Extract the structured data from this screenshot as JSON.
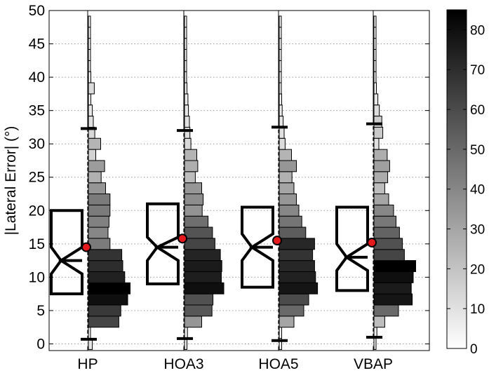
{
  "chart_data": {
    "type": "violin-histogram-boxplot",
    "ylabel": "|Lateral Error| (°)",
    "ylim": [
      -1,
      50
    ],
    "yticks": [
      0,
      5,
      10,
      15,
      20,
      25,
      30,
      35,
      40,
      45,
      50
    ],
    "grid": true,
    "bin_width": 1.67,
    "colorbar": {
      "range": [
        0,
        85
      ],
      "ticks": [
        0,
        10,
        20,
        30,
        40,
        50,
        60,
        70,
        80
      ],
      "colormap": "white-to-black"
    },
    "categories": [
      "HP",
      "HOA3",
      "HOA5",
      "VBAP"
    ],
    "series": [
      {
        "label": "HP",
        "bins": [
          {
            "y": 0,
            "count": 8
          },
          {
            "y": 1.67,
            "count": 3
          },
          {
            "y": 3.33,
            "count": 62
          },
          {
            "y": 5.0,
            "count": 66
          },
          {
            "y": 6.67,
            "count": 80
          },
          {
            "y": 8.33,
            "count": 85
          },
          {
            "y": 10.0,
            "count": 74
          },
          {
            "y": 11.67,
            "count": 70
          },
          {
            "y": 13.33,
            "count": 68
          },
          {
            "y": 15.0,
            "count": 44
          },
          {
            "y": 16.67,
            "count": 40
          },
          {
            "y": 18.33,
            "count": 42
          },
          {
            "y": 20.0,
            "count": 44
          },
          {
            "y": 21.67,
            "count": 44
          },
          {
            "y": 23.33,
            "count": 35
          },
          {
            "y": 25.0,
            "count": 26
          },
          {
            "y": 26.67,
            "count": 33
          },
          {
            "y": 28.33,
            "count": 15
          },
          {
            "y": 30.0,
            "count": 25
          },
          {
            "y": 31.67,
            "count": 13
          },
          {
            "y": 33.33,
            "count": 10
          },
          {
            "y": 35.0,
            "count": 8
          },
          {
            "y": 36.67,
            "count": 5
          },
          {
            "y": 38.33,
            "count": 12
          },
          {
            "y": 40.0,
            "count": 5
          },
          {
            "y": 41.67,
            "count": 3
          },
          {
            "y": 43.33,
            "count": 2
          },
          {
            "y": 45.0,
            "count": 1
          },
          {
            "y": 46.67,
            "count": 1
          },
          {
            "y": 48.33,
            "count": 1
          }
        ],
        "box": {
          "q1": 7.5,
          "median": 12.5,
          "q3": 20.0,
          "notch_low": 10.5,
          "notch_high": 14.5,
          "whisker_low": 0.7,
          "whisker_high": 32.3,
          "mean": 14.5
        }
      },
      {
        "label": "HOA3",
        "bins": [
          {
            "y": 0,
            "count": 5
          },
          {
            "y": 1.67,
            "count": 6
          },
          {
            "y": 3.33,
            "count": 35
          },
          {
            "y": 5.0,
            "count": 56
          },
          {
            "y": 6.67,
            "count": 58
          },
          {
            "y": 8.33,
            "count": 80
          },
          {
            "y": 10.0,
            "count": 75
          },
          {
            "y": 11.67,
            "count": 76
          },
          {
            "y": 13.33,
            "count": 73
          },
          {
            "y": 15.0,
            "count": 62
          },
          {
            "y": 16.67,
            "count": 57
          },
          {
            "y": 18.33,
            "count": 48
          },
          {
            "y": 20.0,
            "count": 36
          },
          {
            "y": 21.67,
            "count": 38
          },
          {
            "y": 23.33,
            "count": 35
          },
          {
            "y": 25.0,
            "count": 22
          },
          {
            "y": 26.67,
            "count": 27
          },
          {
            "y": 28.33,
            "count": 25
          },
          {
            "y": 30.0,
            "count": 13
          },
          {
            "y": 31.67,
            "count": 11
          },
          {
            "y": 33.33,
            "count": 10
          },
          {
            "y": 35.0,
            "count": 8
          },
          {
            "y": 36.67,
            "count": 7
          },
          {
            "y": 38.33,
            "count": 5
          },
          {
            "y": 40.0,
            "count": 3
          },
          {
            "y": 41.67,
            "count": 2
          },
          {
            "y": 43.33,
            "count": 1
          },
          {
            "y": 45.0,
            "count": 1
          },
          {
            "y": 46.67,
            "count": 1
          },
          {
            "y": 48.33,
            "count": 1
          }
        ],
        "box": {
          "q1": 9.0,
          "median": 14.5,
          "q3": 21.0,
          "notch_low": 12.5,
          "notch_high": 16.0,
          "whisker_low": 0.8,
          "whisker_high": 32.0,
          "mean": 15.8
        }
      },
      {
        "label": "HOA5",
        "bins": [
          {
            "y": 0,
            "count": 5
          },
          {
            "y": 1.67,
            "count": 5
          },
          {
            "y": 3.33,
            "count": 30
          },
          {
            "y": 5.0,
            "count": 50
          },
          {
            "y": 6.67,
            "count": 60
          },
          {
            "y": 8.33,
            "count": 78
          },
          {
            "y": 10.0,
            "count": 74
          },
          {
            "y": 11.67,
            "count": 72
          },
          {
            "y": 13.33,
            "count": 68
          },
          {
            "y": 15.0,
            "count": 72
          },
          {
            "y": 16.67,
            "count": 54
          },
          {
            "y": 18.33,
            "count": 46
          },
          {
            "y": 20.0,
            "count": 40
          },
          {
            "y": 21.67,
            "count": 35
          },
          {
            "y": 23.33,
            "count": 30
          },
          {
            "y": 25.0,
            "count": 26
          },
          {
            "y": 26.67,
            "count": 35
          },
          {
            "y": 28.33,
            "count": 25
          },
          {
            "y": 30.0,
            "count": 12
          },
          {
            "y": 31.67,
            "count": 10
          },
          {
            "y": 33.33,
            "count": 8
          },
          {
            "y": 35.0,
            "count": 6
          },
          {
            "y": 36.67,
            "count": 5
          },
          {
            "y": 38.33,
            "count": 4
          },
          {
            "y": 40.0,
            "count": 3
          },
          {
            "y": 41.67,
            "count": 2
          },
          {
            "y": 43.33,
            "count": 1
          },
          {
            "y": 45.0,
            "count": 1
          },
          {
            "y": 46.67,
            "count": 1
          },
          {
            "y": 48.33,
            "count": 1
          }
        ],
        "box": {
          "q1": 8.5,
          "median": 14.5,
          "q3": 20.5,
          "notch_low": 12.5,
          "notch_high": 16.5,
          "whisker_low": 0.5,
          "whisker_high": 32.5,
          "mean": 15.5
        }
      },
      {
        "label": "VBAP",
        "bins": [
          {
            "y": 0,
            "count": 4
          },
          {
            "y": 1.67,
            "count": 6
          },
          {
            "y": 3.33,
            "count": 22
          },
          {
            "y": 5.0,
            "count": 50
          },
          {
            "y": 6.67,
            "count": 78
          },
          {
            "y": 8.33,
            "count": 76
          },
          {
            "y": 10.0,
            "count": 80
          },
          {
            "y": 11.67,
            "count": 85
          },
          {
            "y": 13.33,
            "count": 62
          },
          {
            "y": 15.0,
            "count": 58
          },
          {
            "y": 16.67,
            "count": 52
          },
          {
            "y": 18.33,
            "count": 45
          },
          {
            "y": 20.0,
            "count": 40
          },
          {
            "y": 21.67,
            "count": 30
          },
          {
            "y": 23.33,
            "count": 22
          },
          {
            "y": 25.0,
            "count": 28
          },
          {
            "y": 26.67,
            "count": 32
          },
          {
            "y": 28.33,
            "count": 27
          },
          {
            "y": 30.0,
            "count": 10
          },
          {
            "y": 31.67,
            "count": 18
          },
          {
            "y": 33.33,
            "count": 16
          },
          {
            "y": 35.0,
            "count": 11
          },
          {
            "y": 36.67,
            "count": 8
          },
          {
            "y": 38.33,
            "count": 5
          },
          {
            "y": 40.0,
            "count": 3
          },
          {
            "y": 41.67,
            "count": 2
          },
          {
            "y": 43.33,
            "count": 1
          },
          {
            "y": 45.0,
            "count": 1
          },
          {
            "y": 46.67,
            "count": 1
          },
          {
            "y": 48.33,
            "count": 1
          }
        ],
        "box": {
          "q1": 8.0,
          "median": 13.0,
          "q3": 20.5,
          "notch_low": 11.0,
          "notch_high": 15.0,
          "whisker_low": 1.0,
          "whisker_high": 33.0,
          "mean": 15.2
        }
      }
    ]
  }
}
